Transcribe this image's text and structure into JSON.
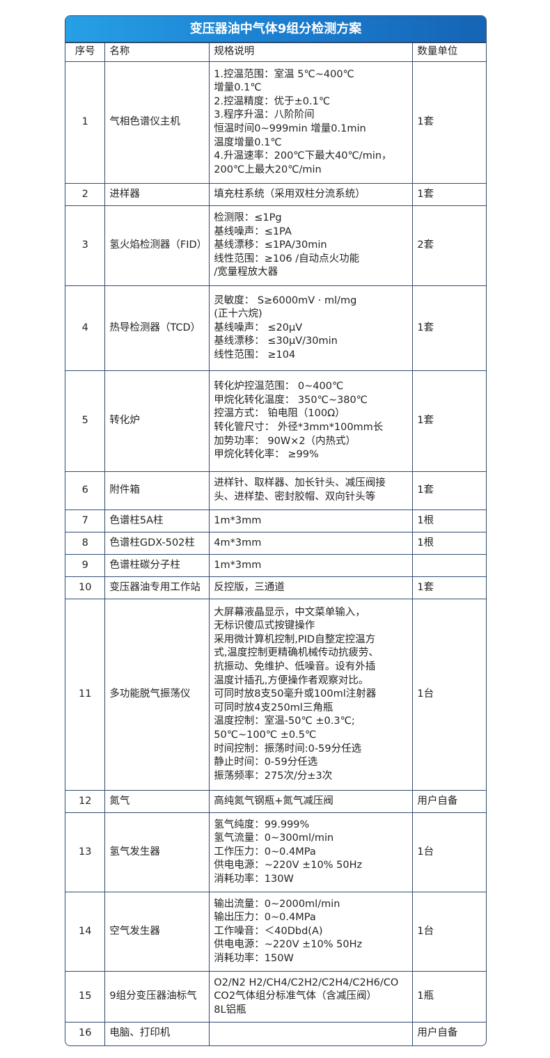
{
  "title": "变压器油中气体9组分检测方案",
  "headers": [
    "序号",
    "名称",
    "规格说明",
    "数量单位"
  ],
  "rows": [
    {
      "no": "1",
      "name": "气相色谱仪主机",
      "spec": [
        "1.控温范围：室温 5℃~400℃",
        "增量0.1℃",
        "2.控温精度：优于±0.1℃",
        "3.程序升温：八阶阶间",
        "恒温时间0~999min 增量0.1min",
        "温度增量0.1℃",
        "4.升温速率：200℃下最大40℃/min，",
        "200℃上最大20℃/min"
      ],
      "qty": "1套"
    },
    {
      "no": "2",
      "name": "进样器",
      "spec": [
        "填充柱系统（采用双柱分流系统）"
      ],
      "qty": "1套"
    },
    {
      "no": "3",
      "name": "氢火焰检测器（FID）",
      "spec": [
        "检测限：≤1Pg",
        "基线噪声：≤1PA",
        "基线漂移：≤1PA/30min",
        "线性范围：≥106 /自动点火功能",
        "/宽量程放大器"
      ],
      "qty": "2套"
    },
    {
      "no": "4",
      "name": "热导检测器（TCD）",
      "spec": [
        "灵敏度： S≥6000mV · ml/mg",
        "(正十六烷)",
        "基线噪声： ≤20μV",
        "基线漂移： ≤30μV/30min",
        "线性范围： ≥104"
      ],
      "qty": "1套"
    },
    {
      "no": "5",
      "name": "转化炉",
      "spec": [
        "转化炉控温范围： 0~400℃",
        "甲烷化转化温度： 350℃~380℃",
        "控温方式： 铂电阻（100Ω）",
        "转化管尺寸： 外径*3mm*100mm长",
        "加势功率： 90W×2（内热式）",
        "甲烷化转化率： ≥99%"
      ],
      "qty": "1套"
    },
    {
      "no": "6",
      "name": "附件箱",
      "spec": [
        "进样针、取样器、加长针头、减压阀接",
        "头、进样垫、密封胶帽、双向针头等"
      ],
      "qty": "1套"
    },
    {
      "no": "7",
      "name": "色谱柱5A柱",
      "spec": [
        "1m*3mm"
      ],
      "qty": "1根"
    },
    {
      "no": "8",
      "name": "色谱柱GDX-502柱",
      "spec": [
        "4m*3mm"
      ],
      "qty": "1根"
    },
    {
      "no": "9",
      "name": "色谱柱碳分子柱",
      "spec": [
        "1m*3mm"
      ],
      "qty": ""
    },
    {
      "no": "10",
      "name": "变压器油专用工作站",
      "spec": [
        "反控版，三通道"
      ],
      "qty": "1套"
    },
    {
      "no": "11",
      "name": "多功能脱气振荡仪",
      "spec": [
        "大屏幕液晶显示，中文菜单输入，",
        "无标识傻瓜式按键操作",
        "采用微计算机控制,PID自整定控温方",
        "式,温度控制更精确机械传动抗疲劳、",
        "抗振动、免维护、低噪音。设有外插",
        "温度计插孔,方便操作者观察对比。",
        "可同时放8支50毫升或100ml注射器",
        "可同时放4支250ml三角瓶",
        "温度控制：室温-50℃ ±0.3℃;",
        " 50℃~100℃ ±0.5℃",
        "时间控制：振荡时间:0-59分任选",
        "静止时间：0-59分任选",
        "振荡频率：275次/分±3次"
      ],
      "qty": "1台"
    },
    {
      "no": "12",
      "name": "氮气",
      "spec": [
        "高纯氮气钢瓶+氮气减压阀"
      ],
      "qty": "用户自备"
    },
    {
      "no": "13",
      "name": "氢气发生器",
      "spec": [
        "氢气纯度：99.999%",
        "氢气流量：0~300ml/min",
        "工作压力：0~0.4MPa",
        "供电电源：~220V ±10% 50Hz",
        "消耗功率：130W"
      ],
      "qty": "1台"
    },
    {
      "no": "14",
      "name": "空气发生器",
      "spec": [
        "输出流量：0~2000ml/min",
        "输出压力：0~0.4MPa",
        "工作噪音：＜40Dbd(A)",
        "供电电源：~220V ±10% 50Hz",
        "消耗功率：150W"
      ],
      "qty": "1台"
    },
    {
      "no": "15",
      "name": "9组分变压器油标气",
      "spec": [
        "O2/N2 H2/CH4/C2H2/C2H4/C2H6/CO",
        "CO2气体组分标准气体（含减压阀）",
        "8L铝瓶"
      ],
      "qty": "1瓶"
    },
    {
      "no": "16",
      "name": "电脑、打印机",
      "spec": [],
      "qty": "用户自备"
    }
  ]
}
